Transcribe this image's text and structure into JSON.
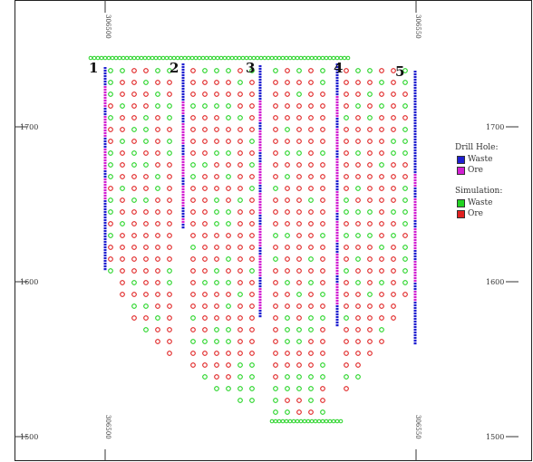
{
  "left_axis": {
    "ticks": [
      "1700",
      "1600",
      "1500"
    ]
  },
  "right_axis": {
    "ticks": [
      "1700",
      "1600",
      "1500"
    ]
  },
  "eastings": {
    "left": "306500",
    "right": "306550"
  },
  "drill_holes": [
    {
      "label": "1"
    },
    {
      "label": "2"
    },
    {
      "label": "3"
    },
    {
      "label": "4"
    },
    {
      "label": "5"
    }
  ],
  "legend": {
    "drill_title": "Drill Hole:",
    "drill_items": [
      {
        "label": "Waste",
        "color": "#1f1fd0"
      },
      {
        "label": "Ore",
        "color": "#d21fd2"
      }
    ],
    "sim_title": "Simulation:",
    "sim_items": [
      {
        "label": "Waste",
        "color": "#22d322"
      },
      {
        "label": "Ore",
        "color": "#e02020"
      }
    ]
  }
}
